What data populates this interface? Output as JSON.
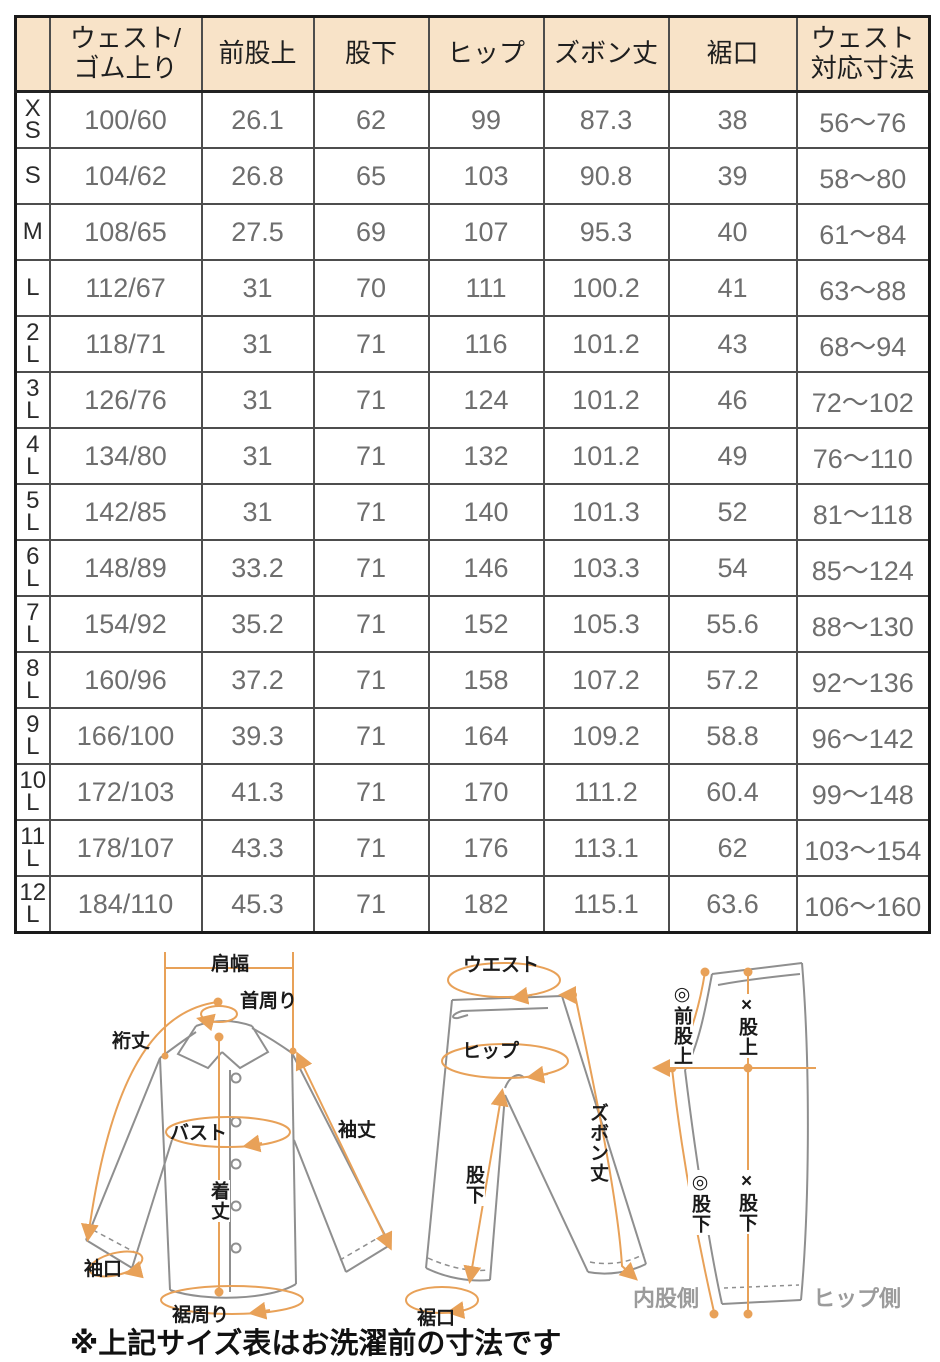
{
  "colors": {
    "header_bg": "#f8e3c8",
    "accent_orange": "#e8a158",
    "garment_gray": "#8f8f8f",
    "cell_text_gray": "#6e6e6e",
    "side_label_gray": "#9b9b9b"
  },
  "table": {
    "corner": "",
    "columns": [
      {
        "lines": [
          "ウェスト/",
          "ゴム上り"
        ]
      },
      {
        "lines": [
          "前股上"
        ]
      },
      {
        "lines": [
          "股下"
        ]
      },
      {
        "lines": [
          "ヒップ"
        ]
      },
      {
        "lines": [
          "ズボン丈"
        ]
      },
      {
        "lines": [
          "裾口"
        ]
      },
      {
        "lines": [
          "ウェスト",
          "対応寸法"
        ]
      }
    ],
    "rows": [
      {
        "size": [
          "X",
          "S"
        ],
        "values": [
          "100/60",
          "26.1",
          "62",
          "99",
          "87.3",
          "38",
          "56〜76"
        ]
      },
      {
        "size": [
          "S"
        ],
        "values": [
          "104/62",
          "26.8",
          "65",
          "103",
          "90.8",
          "39",
          "58〜80"
        ]
      },
      {
        "size": [
          "M"
        ],
        "values": [
          "108/65",
          "27.5",
          "69",
          "107",
          "95.3",
          "40",
          "61〜84"
        ]
      },
      {
        "size": [
          "L"
        ],
        "values": [
          "112/67",
          "31",
          "70",
          "111",
          "100.2",
          "41",
          "63〜88"
        ]
      },
      {
        "size": [
          "2",
          "L"
        ],
        "values": [
          "118/71",
          "31",
          "71",
          "116",
          "101.2",
          "43",
          "68〜94"
        ]
      },
      {
        "size": [
          "3",
          "L"
        ],
        "values": [
          "126/76",
          "31",
          "71",
          "124",
          "101.2",
          "46",
          "72〜102"
        ]
      },
      {
        "size": [
          "4",
          "L"
        ],
        "values": [
          "134/80",
          "31",
          "71",
          "132",
          "101.2",
          "49",
          "76〜110"
        ]
      },
      {
        "size": [
          "5",
          "L"
        ],
        "values": [
          "142/85",
          "31",
          "71",
          "140",
          "101.3",
          "52",
          "81〜118"
        ]
      },
      {
        "size": [
          "6",
          "L"
        ],
        "values": [
          "148/89",
          "33.2",
          "71",
          "146",
          "103.3",
          "54",
          "85〜124"
        ]
      },
      {
        "size": [
          "7",
          "L"
        ],
        "values": [
          "154/92",
          "35.2",
          "71",
          "152",
          "105.3",
          "55.6",
          "88〜130"
        ]
      },
      {
        "size": [
          "8",
          "L"
        ],
        "values": [
          "160/96",
          "37.2",
          "71",
          "158",
          "107.2",
          "57.2",
          "92〜136"
        ]
      },
      {
        "size": [
          "9",
          "L"
        ],
        "values": [
          "166/100",
          "39.3",
          "71",
          "164",
          "109.2",
          "58.8",
          "96〜142"
        ]
      },
      {
        "size": [
          "10",
          "L"
        ],
        "values": [
          "172/103",
          "41.3",
          "71",
          "170",
          "111.2",
          "60.4",
          "99〜148"
        ]
      },
      {
        "size": [
          "11",
          "L"
        ],
        "values": [
          "178/107",
          "43.3",
          "71",
          "176",
          "113.1",
          "62",
          "103〜154"
        ]
      },
      {
        "size": [
          "12",
          "L"
        ],
        "values": [
          "184/110",
          "45.3",
          "71",
          "182",
          "115.1",
          "63.6",
          "106〜160"
        ]
      }
    ]
  },
  "diagrams": {
    "shirt": {
      "shoulder_width": "肩幅",
      "neck_around": "首周り",
      "yuki_length": "裄丈",
      "bust": "バスト",
      "sleeve_length": "袖丈",
      "body_length": "着丈",
      "cuff_opening": "袖口",
      "hem_around": "裾周り"
    },
    "pants_front": {
      "waist": "ウエスト",
      "hip": "ヒップ",
      "pants_length": "ズボン丈",
      "inseam": "股下",
      "hem_opening": "裾口"
    },
    "pants_side": {
      "front_rise": "◎前股上",
      "rise": "×股上",
      "inseam_a": "◎股下",
      "inseam_b": "×股下",
      "inner_side": "内股側",
      "hip_side": "ヒップ側"
    }
  },
  "note": "※上記サイズ表はお洗濯前の寸法です"
}
